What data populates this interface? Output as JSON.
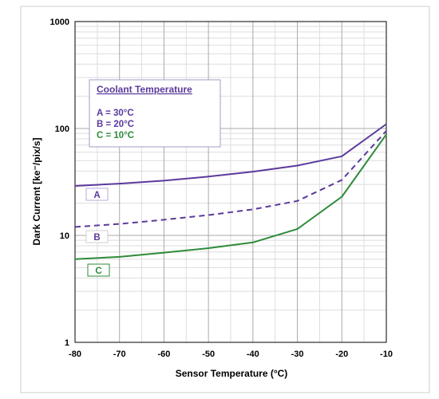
{
  "chart_data": {
    "type": "line",
    "xlabel": "Sensor Temperature (°C)",
    "ylabel": "Dark Current [ke⁻/pix/s]",
    "x_scale": "linear",
    "y_scale": "log",
    "xlim": [
      -80,
      -10
    ],
    "ylim": [
      1,
      1000
    ],
    "grid": true,
    "x_ticks": [
      "-80",
      "-70",
      "-60",
      "-50",
      "-40",
      "-30",
      "-20",
      "-10"
    ],
    "y_ticks": [
      "1",
      "10",
      "100",
      "1000"
    ],
    "x": [
      -80,
      -70,
      -60,
      -50,
      -40,
      -30,
      -20,
      -10
    ],
    "series": [
      {
        "name": "A",
        "style": "solid",
        "color": "#5b3a9c",
        "values": [
          29,
          30.5,
          32.5,
          35.5,
          39.5,
          45,
          55,
          110
        ]
      },
      {
        "name": "B",
        "style": "dashed",
        "color": "#5b3a9c",
        "values": [
          12,
          12.8,
          14,
          15.5,
          17.5,
          21,
          33,
          95
        ]
      },
      {
        "name": "C",
        "style": "solid",
        "color": "#2e8b3a",
        "values": [
          6,
          6.3,
          6.9,
          7.6,
          8.6,
          11.5,
          23,
          88
        ]
      }
    ],
    "legend": {
      "title": "Coolant Temperature",
      "placement": "upper-left",
      "entries": [
        {
          "text": "A = 30°C",
          "color": "#5b3a9c"
        },
        {
          "text": "B = 20°C",
          "color": "#5b3a9c"
        },
        {
          "text": "C = 10°C",
          "color": "#2e8b3a"
        }
      ]
    }
  }
}
